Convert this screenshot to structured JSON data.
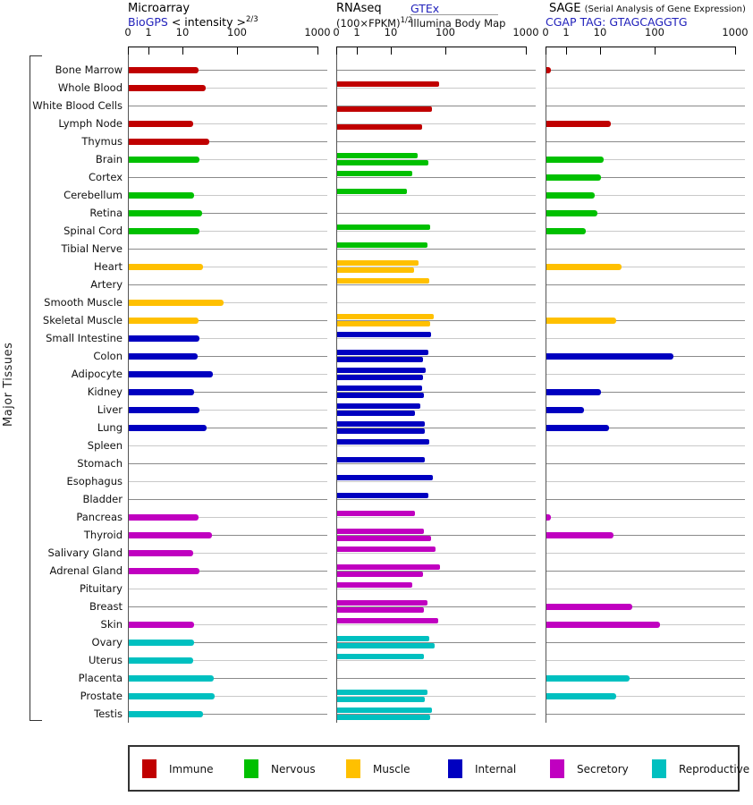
{
  "page": {
    "background": "#ffffff"
  },
  "left_axis": {
    "group_label": "Major Tissues"
  },
  "panels": [
    {
      "id": "microarray",
      "title": "Microarray",
      "source_link": "BioGPS",
      "subtitle": "< intensity >",
      "subtitle_exponent": "2/3",
      "axis_ticks": [
        "0",
        "1",
        "10",
        "100",
        "1000"
      ]
    },
    {
      "id": "rnaseq",
      "title": "RNAseq",
      "subtitle": "(100×FPKM)",
      "subtitle_exponent": "1/2",
      "source_link": "GTEx",
      "source2": "Illumina Body Map",
      "axis_ticks": [
        "0",
        "1",
        "10",
        "100",
        "1000"
      ]
    },
    {
      "id": "sage",
      "title": "SAGE",
      "title_note": "(Serial Analysis of Gene Expression)",
      "source_link": "CGAP TAG: GTAGCAGGTG",
      "axis_ticks": [
        "0",
        "1",
        "10",
        "100",
        "1000"
      ]
    }
  ],
  "legend": [
    {
      "key": "immune",
      "label": "Immune",
      "color": "#c00000"
    },
    {
      "key": "nervous",
      "label": "Nervous",
      "color": "#00c000"
    },
    {
      "key": "muscle",
      "label": "Muscle",
      "color": "#ffc000"
    },
    {
      "key": "internal",
      "label": "Internal",
      "color": "#0000c0"
    },
    {
      "key": "secretory",
      "label": "Secretory",
      "color": "#c000c0"
    },
    {
      "key": "reproductive",
      "label": "Reproductive",
      "color": "#00c0c0"
    }
  ],
  "chart_data": {
    "type": "bar",
    "orientation": "horizontal",
    "x_scale": "piecewise log (ticks 0,1,10,100,1000)",
    "x_ticks": [
      0,
      1,
      10,
      100,
      1000
    ],
    "series_names": [
      "Microarray BioGPS",
      "RNAseq GTEx",
      "RNAseq Illumina Body Map",
      "SAGE"
    ],
    "tissues": [
      {
        "label": "Bone Marrow",
        "category": "immune",
        "microarray": 19,
        "rnaseq_gtex": null,
        "rnaseq_illumina": null,
        "sage": 0.2
      },
      {
        "label": "Whole Blood",
        "category": "immune",
        "microarray": 26,
        "rnaseq_gtex": 74,
        "rnaseq_illumina": null,
        "sage": null
      },
      {
        "label": "White Blood Cells",
        "category": "immune",
        "microarray": null,
        "rnaseq_gtex": null,
        "rnaseq_illumina": 55,
        "sage": null
      },
      {
        "label": "Lymph Node",
        "category": "immune",
        "microarray": 15,
        "rnaseq_gtex": null,
        "rnaseq_illumina": 36,
        "sage": 15
      },
      {
        "label": "Thymus",
        "category": "immune",
        "microarray": 30,
        "rnaseq_gtex": null,
        "rnaseq_illumina": null,
        "sage": null
      },
      {
        "label": "Brain",
        "category": "nervous",
        "microarray": 20,
        "rnaseq_gtex": 30,
        "rnaseq_illumina": 47,
        "sage": 11
      },
      {
        "label": "Cortex",
        "category": "nervous",
        "microarray": null,
        "rnaseq_gtex": 24,
        "rnaseq_illumina": null,
        "sage": 10
      },
      {
        "label": "Cerebellum",
        "category": "nervous",
        "microarray": 16,
        "rnaseq_gtex": 19,
        "rnaseq_illumina": null,
        "sage": 6.5
      },
      {
        "label": "Retina",
        "category": "nervous",
        "microarray": 22,
        "rnaseq_gtex": null,
        "rnaseq_illumina": null,
        "sage": 8
      },
      {
        "label": "Spinal Cord",
        "category": "nervous",
        "microarray": 20,
        "rnaseq_gtex": 50,
        "rnaseq_illumina": null,
        "sage": 3.5
      },
      {
        "label": "Tibial Nerve",
        "category": "nervous",
        "microarray": null,
        "rnaseq_gtex": 46,
        "rnaseq_illumina": null,
        "sage": null
      },
      {
        "label": "Heart",
        "category": "muscle",
        "microarray": 23,
        "rnaseq_gtex": 31,
        "rnaseq_illumina": 26,
        "sage": 24
      },
      {
        "label": "Artery",
        "category": "muscle",
        "microarray": null,
        "rnaseq_gtex": 49,
        "rnaseq_illumina": null,
        "sage": null
      },
      {
        "label": "Smooth Muscle",
        "category": "muscle",
        "microarray": 55,
        "rnaseq_gtex": null,
        "rnaseq_illumina": null,
        "sage": null
      },
      {
        "label": "Skeletal Muscle",
        "category": "muscle",
        "microarray": 19,
        "rnaseq_gtex": 59,
        "rnaseq_illumina": 50,
        "sage": 19
      },
      {
        "label": "Small Intestine",
        "category": "internal",
        "microarray": 20,
        "rnaseq_gtex": 52,
        "rnaseq_illumina": null,
        "sage": null
      },
      {
        "label": "Colon",
        "category": "internal",
        "microarray": 18,
        "rnaseq_gtex": 47,
        "rnaseq_illumina": 37,
        "sage": 165
      },
      {
        "label": "Adipocyte",
        "category": "internal",
        "microarray": 35,
        "rnaseq_gtex": 42,
        "rnaseq_illumina": 37,
        "sage": null
      },
      {
        "label": "Kidney",
        "category": "internal",
        "microarray": 16,
        "rnaseq_gtex": 36,
        "rnaseq_illumina": 39,
        "sage": 10
      },
      {
        "label": "Liver",
        "category": "internal",
        "microarray": 20,
        "rnaseq_gtex": 33,
        "rnaseq_illumina": 27,
        "sage": 3.2
      },
      {
        "label": "Lung",
        "category": "internal",
        "microarray": 27,
        "rnaseq_gtex": 40,
        "rnaseq_illumina": 40,
        "sage": 14
      },
      {
        "label": "Spleen",
        "category": "internal",
        "microarray": null,
        "rnaseq_gtex": 49,
        "rnaseq_illumina": null,
        "sage": null
      },
      {
        "label": "Stomach",
        "category": "internal",
        "microarray": null,
        "rnaseq_gtex": 40,
        "rnaseq_illumina": null,
        "sage": null
      },
      {
        "label": "Esophagus",
        "category": "internal",
        "microarray": null,
        "rnaseq_gtex": 57,
        "rnaseq_illumina": null,
        "sage": null
      },
      {
        "label": "Bladder",
        "category": "internal",
        "microarray": null,
        "rnaseq_gtex": 47,
        "rnaseq_illumina": null,
        "sage": null
      },
      {
        "label": "Pancreas",
        "category": "secretory",
        "microarray": 19,
        "rnaseq_gtex": 27,
        "rnaseq_illumina": null,
        "sage": 0.2
      },
      {
        "label": "Thyroid",
        "category": "secretory",
        "microarray": 33,
        "rnaseq_gtex": 39,
        "rnaseq_illumina": 52,
        "sage": 17
      },
      {
        "label": "Salivary Gland",
        "category": "secretory",
        "microarray": 15,
        "rnaseq_gtex": 64,
        "rnaseq_illumina": null,
        "sage": null
      },
      {
        "label": "Adrenal Gland",
        "category": "secretory",
        "microarray": 20,
        "rnaseq_gtex": 77,
        "rnaseq_illumina": 37,
        "sage": null
      },
      {
        "label": "Pituitary",
        "category": "secretory",
        "microarray": null,
        "rnaseq_gtex": 24,
        "rnaseq_illumina": null,
        "sage": null
      },
      {
        "label": "Breast",
        "category": "secretory",
        "microarray": null,
        "rnaseq_gtex": 46,
        "rnaseq_illumina": 39,
        "sage": 37
      },
      {
        "label": "Skin",
        "category": "secretory",
        "microarray": 16,
        "rnaseq_gtex": 71,
        "rnaseq_illumina": null,
        "sage": 115
      },
      {
        "label": "Ovary",
        "category": "reproductive",
        "microarray": 16,
        "rnaseq_gtex": 49,
        "rnaseq_illumina": 61,
        "sage": null
      },
      {
        "label": "Uterus",
        "category": "reproductive",
        "microarray": 15,
        "rnaseq_gtex": 39,
        "rnaseq_illumina": null,
        "sage": null
      },
      {
        "label": "Placenta",
        "category": "reproductive",
        "microarray": 36,
        "rnaseq_gtex": null,
        "rnaseq_illumina": null,
        "sage": 33
      },
      {
        "label": "Prostate",
        "category": "reproductive",
        "microarray": 37,
        "rnaseq_gtex": 46,
        "rnaseq_illumina": 40,
        "sage": 19
      },
      {
        "label": "Testis",
        "category": "reproductive",
        "microarray": 23,
        "rnaseq_gtex": 55,
        "rnaseq_illumina": 50,
        "sage": null
      }
    ]
  }
}
